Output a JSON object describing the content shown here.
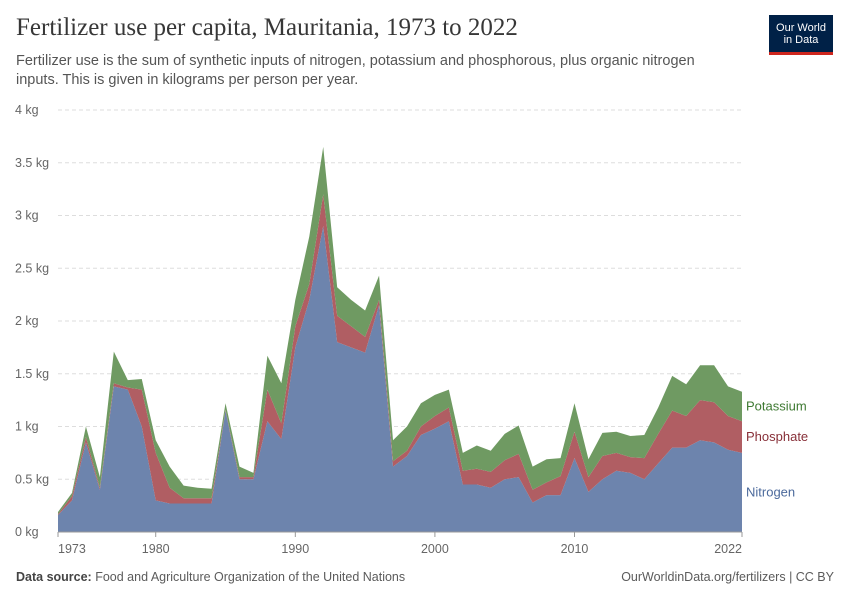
{
  "header": {
    "title": "Fertilizer use per capita, Mauritania, 1973 to 2022",
    "subtitle": "Fertilizer use is the sum of synthetic inputs of nitrogen, potassium and phosphorous, plus organic nitrogen inputs. This is given in kilograms per person per year.",
    "logo_line1": "Our World",
    "logo_line2": "in Data"
  },
  "footer": {
    "source_label": "Data source:",
    "source_text": "Food and Agriculture Organization of the United Nations",
    "credit": "OurWorldinData.org/fertilizers | CC BY"
  },
  "colors": {
    "nitrogen": "#6d84ad",
    "phosphate": "#b05e63",
    "potassium": "#6f9a62",
    "nitrogen_label": "#4c6a9c",
    "phosphate_label": "#883039",
    "potassium_label": "#3f7a33",
    "grid": "#dddddd"
  },
  "chart_data": {
    "type": "area",
    "stacked": true,
    "title": "Fertilizer use per capita, Mauritania, 1973 to 2022",
    "x": [
      1973,
      1974,
      1975,
      1976,
      1977,
      1978,
      1979,
      1980,
      1981,
      1982,
      1983,
      1984,
      1985,
      1986,
      1987,
      1988,
      1989,
      1990,
      1991,
      1992,
      1993,
      1994,
      1995,
      1996,
      1997,
      1998,
      1999,
      2000,
      2001,
      2002,
      2003,
      2004,
      2005,
      2006,
      2007,
      2008,
      2009,
      2010,
      2011,
      2012,
      2013,
      2014,
      2015,
      2016,
      2017,
      2018,
      2019,
      2020,
      2021,
      2022
    ],
    "series": [
      {
        "name": "Nitrogen",
        "values": [
          0.16,
          0.3,
          0.85,
          0.4,
          1.38,
          1.35,
          1.0,
          0.3,
          0.27,
          0.27,
          0.27,
          0.27,
          1.15,
          0.5,
          0.5,
          1.05,
          0.88,
          1.75,
          2.2,
          2.9,
          1.8,
          1.75,
          1.7,
          2.15,
          0.62,
          0.72,
          0.92,
          0.98,
          1.05,
          0.45,
          0.45,
          0.42,
          0.5,
          0.52,
          0.28,
          0.35,
          0.35,
          0.7,
          0.38,
          0.5,
          0.58,
          0.56,
          0.5,
          0.65,
          0.8,
          0.8,
          0.87,
          0.85,
          0.78,
          0.75
        ]
      },
      {
        "name": "Phosphate",
        "values": [
          0.01,
          0.04,
          0.05,
          0.02,
          0.03,
          0.02,
          0.35,
          0.45,
          0.15,
          0.05,
          0.05,
          0.05,
          0.01,
          0.02,
          0.02,
          0.3,
          0.15,
          0.2,
          0.15,
          0.3,
          0.25,
          0.2,
          0.15,
          0.05,
          0.05,
          0.05,
          0.08,
          0.12,
          0.13,
          0.13,
          0.15,
          0.15,
          0.18,
          0.22,
          0.12,
          0.12,
          0.18,
          0.25,
          0.14,
          0.22,
          0.17,
          0.15,
          0.2,
          0.28,
          0.35,
          0.3,
          0.38,
          0.38,
          0.32,
          0.3
        ]
      },
      {
        "name": "Potassium",
        "values": [
          0.02,
          0.03,
          0.1,
          0.1,
          0.3,
          0.07,
          0.1,
          0.12,
          0.2,
          0.12,
          0.1,
          0.09,
          0.06,
          0.1,
          0.04,
          0.32,
          0.38,
          0.25,
          0.45,
          0.45,
          0.27,
          0.25,
          0.25,
          0.23,
          0.2,
          0.23,
          0.22,
          0.2,
          0.17,
          0.17,
          0.22,
          0.2,
          0.25,
          0.27,
          0.22,
          0.22,
          0.17,
          0.27,
          0.17,
          0.22,
          0.2,
          0.2,
          0.22,
          0.25,
          0.33,
          0.3,
          0.33,
          0.35,
          0.28,
          0.28
        ]
      }
    ],
    "y_unit": "kg",
    "ylim": [
      0,
      4
    ],
    "y_ticks": [
      "0 kg",
      "0.5 kg",
      "1 kg",
      "1.5 kg",
      "2 kg",
      "2.5 kg",
      "3 kg",
      "3.5 kg",
      "4 kg"
    ],
    "x_ticks": [
      "1973",
      "1980",
      "1990",
      "2000",
      "2010",
      "2022"
    ],
    "grid": true,
    "legend_position": "right-inline"
  }
}
